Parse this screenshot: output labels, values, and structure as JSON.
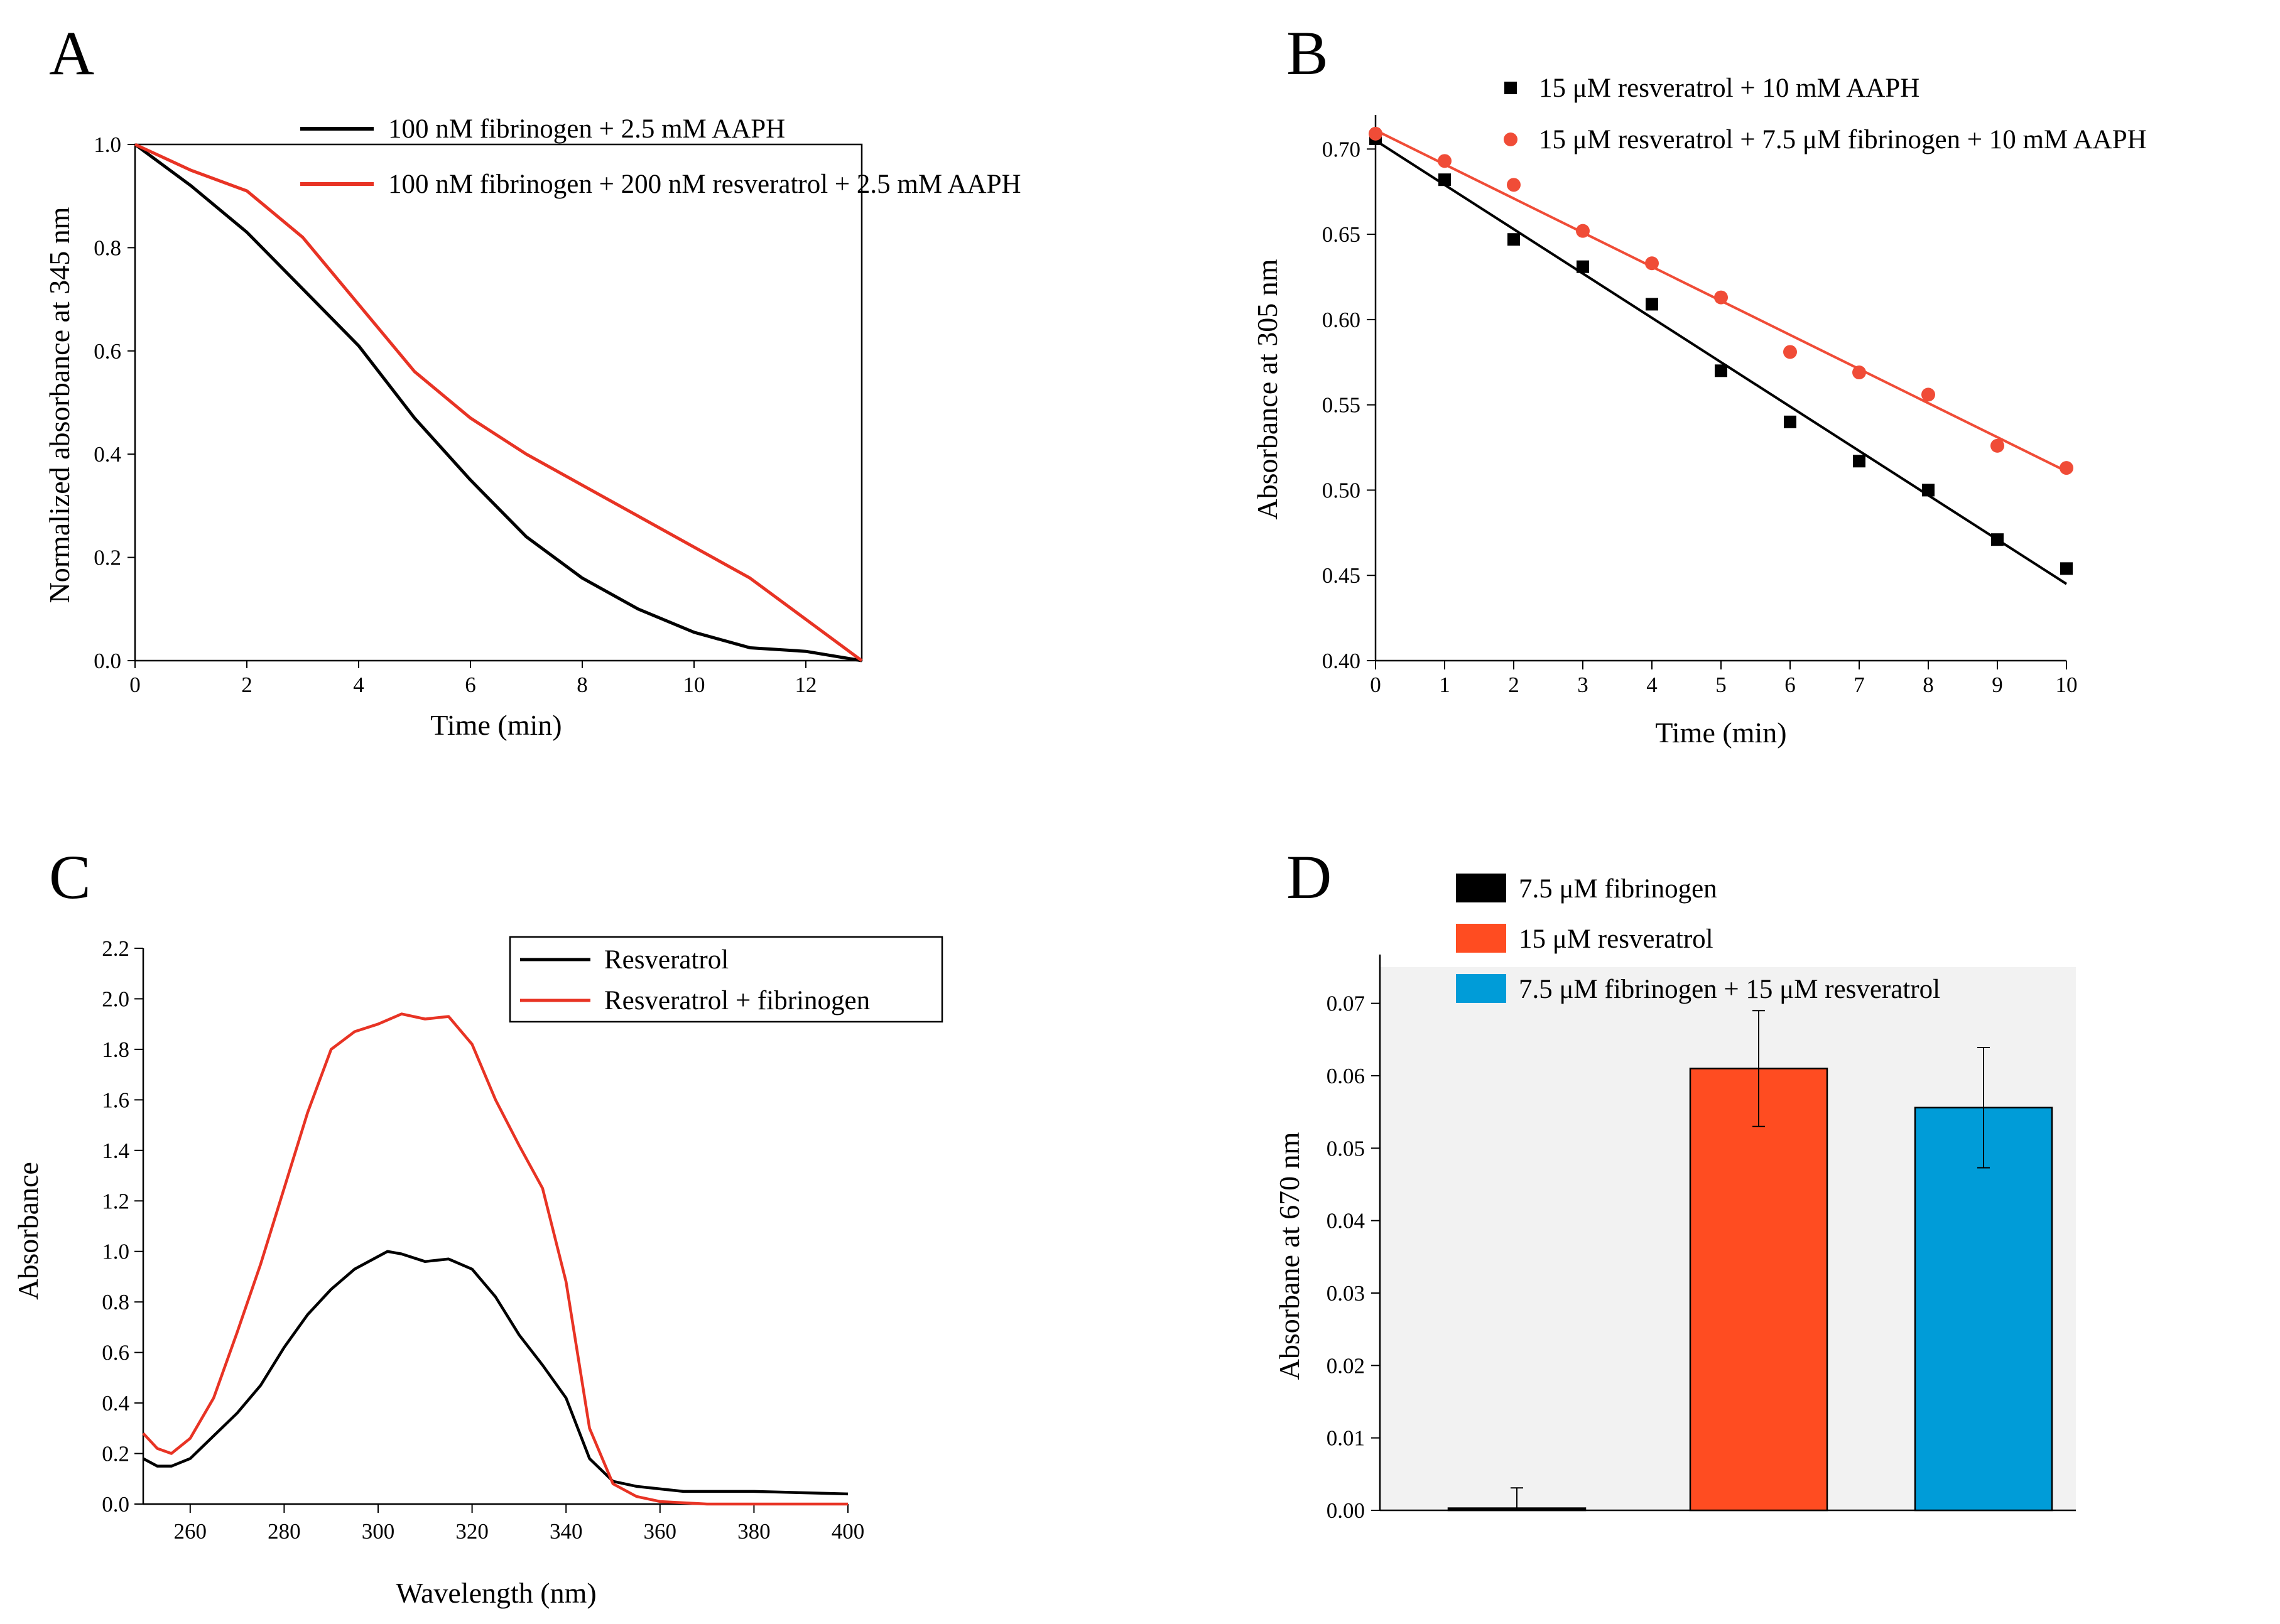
{
  "colors": {
    "black": "#000000",
    "red": "#e83324",
    "red_marker": "#f04c37",
    "orange_red": "#ff4c21",
    "blue": "#009cd8"
  },
  "chart_data": [
    {
      "panel": "A",
      "type": "line",
      "xlabel": "Time (min)",
      "ylabel": "Normalized absorbance at 345 nm",
      "xlim": [
        0,
        13
      ],
      "ylim": [
        0,
        1.0
      ],
      "xticks": [
        0,
        2,
        4,
        6,
        8,
        10,
        12
      ],
      "yticks": [
        0.0,
        0.2,
        0.4,
        0.6,
        0.8,
        1.0
      ],
      "legend": "top-right",
      "series": [
        {
          "name": "100 nM fibrinogen + 2.5 mM AAPH",
          "color": "#000000",
          "x": [
            0,
            1,
            2,
            3,
            4,
            5,
            6,
            7,
            8,
            9,
            10,
            11,
            12,
            13
          ],
          "y": [
            1.0,
            0.92,
            0.83,
            0.72,
            0.61,
            0.47,
            0.35,
            0.24,
            0.16,
            0.1,
            0.055,
            0.025,
            0.018,
            0.0
          ]
        },
        {
          "name": "100 nM fibrinogen + 200 nM resveratrol + 2.5 mM AAPH",
          "color": "#e83324",
          "x": [
            0,
            1,
            2,
            3,
            4,
            5,
            6,
            7,
            8,
            9,
            10,
            11,
            12,
            13
          ],
          "y": [
            1.0,
            0.95,
            0.91,
            0.82,
            0.69,
            0.56,
            0.47,
            0.4,
            0.34,
            0.28,
            0.22,
            0.16,
            0.08,
            0.0
          ]
        }
      ]
    },
    {
      "panel": "B",
      "type": "scatter",
      "xlabel": "Time (min)",
      "ylabel": "Absorbance at 305 nm",
      "xlim": [
        0,
        10
      ],
      "ylim": [
        0.4,
        0.72
      ],
      "xticks": [
        0,
        1,
        2,
        3,
        4,
        5,
        6,
        7,
        8,
        9,
        10
      ],
      "yticks": [
        0.4,
        0.45,
        0.5,
        0.55,
        0.6,
        0.65,
        0.7
      ],
      "ytick_labels": [
        "0.40",
        "0.45",
        "0.50",
        "0.55",
        "0.60",
        "0.65",
        "0.70"
      ],
      "xtick_labels": [
        "0",
        "1",
        "2",
        "3",
        "4",
        "5",
        "6",
        "7",
        "8",
        "9",
        "10"
      ],
      "legend": "top",
      "series": [
        {
          "name": "15 μM resveratrol + 10 mM AAPH",
          "color": "#000000",
          "marker": "square",
          "x": [
            0,
            1,
            2,
            3,
            4,
            5,
            6,
            7,
            8,
            9,
            10
          ],
          "y": [
            0.706,
            0.682,
            0.647,
            0.631,
            0.609,
            0.57,
            0.54,
            0.517,
            0.5,
            0.471,
            0.454
          ],
          "fit": [
            0.705,
            0.445
          ]
        },
        {
          "name": "15 μM resveratrol + 7.5 μM fibrinogen + 10 mM AAPH",
          "color": "#f04c37",
          "marker": "circle",
          "x": [
            0,
            1,
            2,
            3,
            4,
            5,
            6,
            7,
            8,
            9,
            10
          ],
          "y": [
            0.709,
            0.693,
            0.679,
            0.652,
            0.633,
            0.613,
            0.581,
            0.569,
            0.556,
            0.526,
            0.513
          ],
          "fit": [
            0.711,
            0.511
          ]
        }
      ]
    },
    {
      "panel": "C",
      "type": "line",
      "xlabel": "Wavelength (nm)",
      "ylabel": "Absorbance",
      "xlim": [
        250,
        400
      ],
      "ylim": [
        0.0,
        2.2
      ],
      "xticks": [
        260,
        280,
        300,
        320,
        340,
        360,
        380,
        400
      ],
      "yticks": [
        0.0,
        0.2,
        0.4,
        0.6,
        0.8,
        1.0,
        1.2,
        1.4,
        1.6,
        1.8,
        2.0,
        2.2
      ],
      "legend": "top-right",
      "series": [
        {
          "name": "Resveratrol",
          "color": "#000000",
          "x": [
            250,
            253,
            256,
            260,
            265,
            270,
            275,
            280,
            285,
            290,
            295,
            300,
            302,
            305,
            310,
            315,
            320,
            325,
            330,
            335,
            340,
            345,
            350,
            355,
            360,
            365,
            370,
            380,
            390,
            400
          ],
          "y": [
            0.18,
            0.15,
            0.15,
            0.18,
            0.27,
            0.36,
            0.47,
            0.62,
            0.75,
            0.85,
            0.93,
            0.98,
            1.0,
            0.99,
            0.96,
            0.97,
            0.93,
            0.82,
            0.67,
            0.55,
            0.42,
            0.18,
            0.09,
            0.07,
            0.06,
            0.05,
            0.05,
            0.05,
            0.045,
            0.04
          ]
        },
        {
          "name": "Resveratrol + fibrinogen",
          "color": "#e83324",
          "x": [
            250,
            253,
            256,
            260,
            265,
            270,
            275,
            280,
            285,
            290,
            295,
            300,
            305,
            310,
            315,
            320,
            325,
            330,
            335,
            340,
            345,
            350,
            355,
            360,
            365,
            370,
            380,
            390,
            400
          ],
          "y": [
            0.28,
            0.22,
            0.2,
            0.26,
            0.42,
            0.68,
            0.95,
            1.25,
            1.55,
            1.8,
            1.87,
            1.9,
            1.94,
            1.92,
            1.93,
            1.82,
            1.6,
            1.42,
            1.25,
            0.88,
            0.3,
            0.08,
            0.03,
            0.01,
            0.005,
            0.0,
            0.0,
            0.0,
            0.0
          ]
        }
      ]
    },
    {
      "panel": "D",
      "type": "bar",
      "ylabel": "Absorbane at 670 nm",
      "ylim": [
        0.0,
        0.075
      ],
      "yticks": [
        0.0,
        0.01,
        0.02,
        0.03,
        0.04,
        0.05,
        0.06,
        0.07
      ],
      "ytick_labels": [
        "0.00",
        "0.01",
        "0.02",
        "0.03",
        "0.04",
        "0.05",
        "0.06",
        "0.07"
      ],
      "legend": "top",
      "series": [
        {
          "name": "7.5 μM fibrinogen",
          "color": "#000000",
          "value": 0.0003,
          "error": 0.0028
        },
        {
          "name": "15 μM resveratrol",
          "color": "#ff4c21",
          "value": 0.061,
          "error": 0.008
        },
        {
          "name": "7.5 μM fibrinogen + 15 μM resveratrol",
          "color": "#009cd8",
          "value": 0.0556,
          "error": 0.0083
        }
      ]
    }
  ],
  "panels": [
    {
      "letter": "A",
      "xlabel": "Time (min)",
      "ylabel": "Normalized absorbance at 345 nm"
    },
    {
      "letter": "B",
      "xlabel": "Time (min)",
      "ylabel": "Absorbance at 305 nm"
    },
    {
      "letter": "C",
      "xlabel": "Wavelength (nm)",
      "ylabel": "Absorbance"
    },
    {
      "letter": "D",
      "xlabel": "",
      "ylabel": "Absorbane at 670 nm"
    }
  ]
}
